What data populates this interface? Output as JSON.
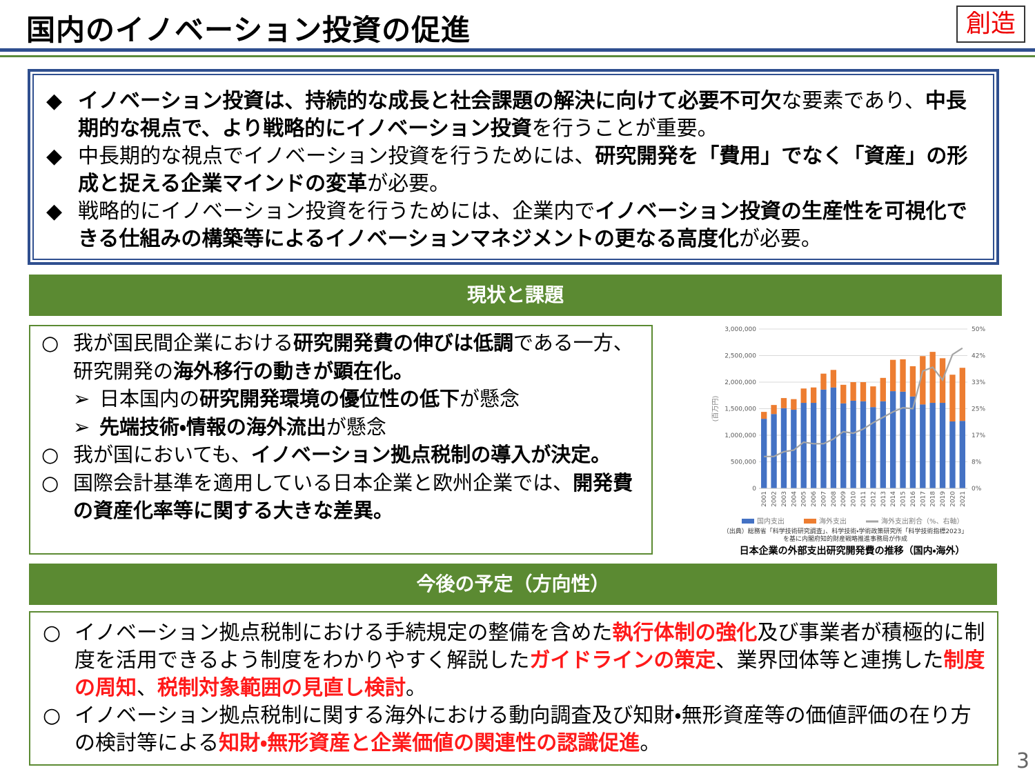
{
  "header": {
    "title": "国内のイノベーション投資の促進",
    "badge": "創造"
  },
  "summary": {
    "items": [
      {
        "marker": "◆",
        "segments": [
          {
            "text": "イノベーション投資は、持続的な成長と社会課題の解決に向けて必要不可欠",
            "style": "bold"
          },
          {
            "text": "な要素であり、",
            "style": "normal"
          },
          {
            "text": "中長期的な視点で、より戦略的にイノベーション投資",
            "style": "bold"
          },
          {
            "text": "を行うことが重要。",
            "style": "normal"
          }
        ]
      },
      {
        "marker": "◆",
        "segments": [
          {
            "text": "中長期的な視点でイノベーション投資を行うためには、",
            "style": "normal"
          },
          {
            "text": "研究開発を「費用」でなく「資産」の形成と捉える企業マインドの変革",
            "style": "bold"
          },
          {
            "text": "が必要。",
            "style": "normal"
          }
        ]
      },
      {
        "marker": "◆",
        "segments": [
          {
            "text": "戦略的にイノベーション投資を行うためには、企業内で",
            "style": "normal"
          },
          {
            "text": "イノベーション投資の生産性を可視化できる仕組みの構築等によるイノベーションマネジメントの更なる高度化",
            "style": "bold"
          },
          {
            "text": "が必要。",
            "style": "normal"
          }
        ]
      }
    ]
  },
  "current": {
    "heading": "現状と課題",
    "items": [
      {
        "marker": "○",
        "segments": [
          {
            "text": "我が国民間企業における",
            "style": "normal"
          },
          {
            "text": "研究開発費の伸びは低調",
            "style": "bold"
          },
          {
            "text": "である一方、研究開発の",
            "style": "normal"
          },
          {
            "text": "海外移行の動きが顕在化。",
            "style": "bold"
          }
        ]
      },
      {
        "marker": "➢",
        "level": 2,
        "segments": [
          {
            "text": "日本国内の",
            "style": "normal"
          },
          {
            "text": "研究開発環境の優位性の低下",
            "style": "bold"
          },
          {
            "text": "が懸念",
            "style": "normal"
          }
        ]
      },
      {
        "marker": "➢",
        "level": 2,
        "segments": [
          {
            "text": "先端技術・情報の海外流出",
            "style": "bold"
          },
          {
            "text": "が懸念",
            "style": "normal"
          }
        ]
      },
      {
        "marker": "○",
        "segments": [
          {
            "text": "我が国においても、",
            "style": "normal"
          },
          {
            "text": "イノベーション拠点税制の導入が決定。",
            "style": "bold"
          }
        ]
      },
      {
        "marker": "○",
        "segments": [
          {
            "text": "国際会計基準を適用している日本企業と欧州企業では、",
            "style": "normal"
          },
          {
            "text": "開発費の資産化率等に関する大きな差異。",
            "style": "bold"
          }
        ]
      }
    ]
  },
  "chart": {
    "type": "bar",
    "stacked": true,
    "title": "日本企業の外部支出研究開発費の推移（国内・海外）",
    "y_label": "(百万円)",
    "source": [
      "（出典）総務省「科学技術研究調査」、科学技術・学術政策研究所「科学技術指標2023」",
      "を基に内閣府知的財産戦略推進事務局が作成"
    ],
    "categories": [
      "2001",
      "2002",
      "2003",
      "2004",
      "2005",
      "2006",
      "2007",
      "2008",
      "2009",
      "2010",
      "2011",
      "2012",
      "2013",
      "2014",
      "2015",
      "2016",
      "2017",
      "2018",
      "2019",
      "2020",
      "2021"
    ],
    "series": [
      {
        "name": "国内支出",
        "color": "#4472c4",
        "values": [
          1310000,
          1400000,
          1510000,
          1480000,
          1610000,
          1610000,
          1860000,
          1900000,
          1600000,
          1650000,
          1640000,
          1530000,
          1640000,
          1830000,
          1820000,
          1730000,
          1580000,
          1610000,
          1610000,
          1260000,
          1270000
        ]
      },
      {
        "name": "海外支出",
        "color": "#ed7d31",
        "values": [
          130000,
          170000,
          190000,
          200000,
          270000,
          290000,
          300000,
          330000,
          350000,
          350000,
          360000,
          390000,
          440000,
          590000,
          610000,
          570000,
          910000,
          960000,
          840000,
          880000,
          1000000
        ]
      },
      {
        "name": "海外支出割合（%、右軸）",
        "color": "#a5a5a5",
        "type": "line",
        "axis": "y2",
        "values": [
          10,
          10,
          11.5,
          12,
          14.5,
          14,
          14,
          15.5,
          17.8,
          17.3,
          18.6,
          20.6,
          22.3,
          24,
          25.3,
          25,
          36.8,
          38,
          34,
          42,
          44
        ]
      }
    ],
    "ylim": [
      0,
      3000000
    ],
    "yticks": [
      0,
      {
        "value": 500000,
        "label": "500,000"
      },
      {
        "value": 1000000,
        "label": "1,000,000"
      },
      {
        "value": 1500000,
        "label": "1,500,000"
      },
      {
        "value": 2000000,
        "label": "2,000,000"
      },
      {
        "value": 2500000,
        "label": "2,500,000"
      },
      {
        "value": 3000000,
        "label": "3,000,000"
      }
    ],
    "y2lim": [
      0,
      50
    ],
    "y2ticks": [
      {
        "value": 0,
        "label": "0%"
      },
      {
        "value": 8.33,
        "label": "8%"
      },
      {
        "value": 16.67,
        "label": "17%"
      },
      {
        "value": 25,
        "label": "25%"
      },
      {
        "value": 33.33,
        "label": "33%"
      },
      {
        "value": 41.67,
        "label": "42%"
      },
      {
        "value": 50,
        "label": "50%"
      }
    ],
    "grid": true
  },
  "plan": {
    "heading": "今後の予定（方向性）",
    "items": [
      {
        "marker": "○",
        "segments": [
          {
            "text": "イノベーション拠点税制における手続規定の整備を含めた",
            "style": "normal"
          },
          {
            "text": "執行体制の強化",
            "style": "red"
          },
          {
            "text": "及び事業者が積極的に制度を活用できるよう制度をわかりやすく解説した",
            "style": "normal"
          },
          {
            "text": "ガイドラインの策定",
            "style": "red"
          },
          {
            "text": "、業界団体等と連携した",
            "style": "normal"
          },
          {
            "text": "制度の周知",
            "style": "red"
          },
          {
            "text": "、",
            "style": "normal"
          },
          {
            "text": "税制対象範囲の見直し検討",
            "style": "red"
          },
          {
            "text": "。",
            "style": "normal"
          }
        ]
      },
      {
        "marker": "○",
        "segments": [
          {
            "text": "イノベーション拠点税制に関する海外における動向調査及び知財・無形資産等の価値評価の在り方の検討等による",
            "style": "normal"
          },
          {
            "text": "知財・無形資産と企業価値の関連性の認識促進",
            "style": "red"
          },
          {
            "text": "。",
            "style": "normal"
          }
        ]
      }
    ]
  },
  "page_number": "3"
}
